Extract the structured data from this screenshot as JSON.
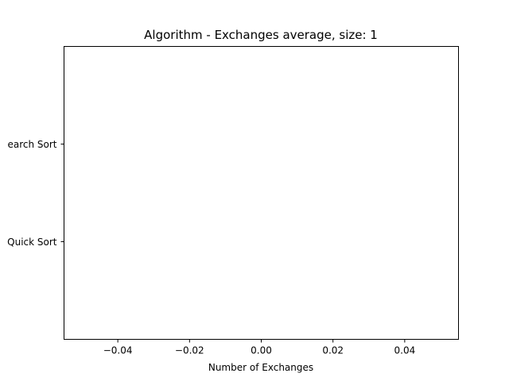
{
  "chart_data": {
    "type": "bar",
    "orientation": "horizontal",
    "title": "Algorithm - Exchanges average, size: 1",
    "xlabel": "Number of Exchanges",
    "ylabel": "",
    "categories": [
      "Quick Sort",
      "Binary Search Sort"
    ],
    "categories_visible": [
      "Quick Sort",
      "earch Sort"
    ],
    "values": [
      0,
      0
    ],
    "xlim": [
      -0.055,
      0.055
    ],
    "xticks": [
      -0.04,
      -0.02,
      0.0,
      0.02,
      0.04
    ],
    "xtick_labels": [
      "−0.04",
      "−0.02",
      "0.00",
      "0.02",
      "0.04"
    ],
    "grid": false,
    "legend": "none"
  }
}
